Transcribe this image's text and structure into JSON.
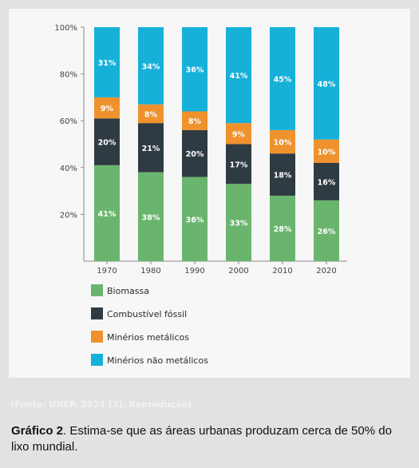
{
  "chart_data": {
    "type": "bar",
    "stacked": true,
    "categories": [
      "1970",
      "1980",
      "1990",
      "2000",
      "2010",
      "2020"
    ],
    "series": [
      {
        "name": "Biomassa",
        "values": [
          41,
          38,
          36,
          33,
          28,
          26
        ],
        "labels": [
          "41%",
          "38%",
          "36%",
          "33%",
          "28%",
          "26%"
        ],
        "color": "#6ab56e"
      },
      {
        "name": "Combustível fóssil",
        "values": [
          20,
          21,
          20,
          17,
          18,
          16
        ],
        "labels": [
          "20%",
          "21%",
          "20%",
          "17%",
          "18%",
          "16%"
        ],
        "color": "#2f3b42"
      },
      {
        "name": "Minérios metálicos",
        "values": [
          9,
          8,
          8,
          9,
          10,
          10
        ],
        "labels": [
          "9%",
          "8%",
          "8%",
          "9%",
          "10%",
          "10%"
        ],
        "color": "#ef922e"
      },
      {
        "name": "Minérios não metálicos",
        "values": [
          31,
          34,
          36,
          41,
          45,
          48
        ],
        "labels": [
          "31%",
          "34%",
          "36%",
          "41%",
          "45%",
          "48%"
        ],
        "color": "#16b0d9"
      }
    ],
    "yticks": [
      "100%",
      "80%",
      "60%",
      "40%",
      "20%"
    ],
    "ylim": [
      0,
      100
    ],
    "legend_position": "bottom-left",
    "grid": false
  },
  "source": "(Fonte: UNEP, 2024 [3]. Reprodução)",
  "caption": {
    "label": "Gráfico 2",
    "text": ". Estima-se que as áreas urbanas produzam cerca de 50% do lixo mundial."
  }
}
